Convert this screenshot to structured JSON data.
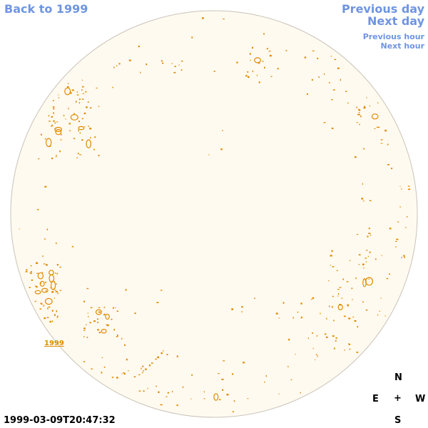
{
  "nav": {
    "back": "Back to 1999",
    "previous_day": "Previous day",
    "next_day": "Next day",
    "previous_hour": "Previous hour",
    "next_hour": "Next hour"
  },
  "timestamp": "1999-03-09T20:47:32",
  "compass": {
    "north": "N",
    "east": "E",
    "center": "+",
    "west": "W",
    "south": "S"
  },
  "region_label": "1999",
  "colors": {
    "link": "#6f95e0",
    "disk_fill": "#fffaf0",
    "disk_border": "#c9c3b8",
    "feature": "#e08a00"
  }
}
